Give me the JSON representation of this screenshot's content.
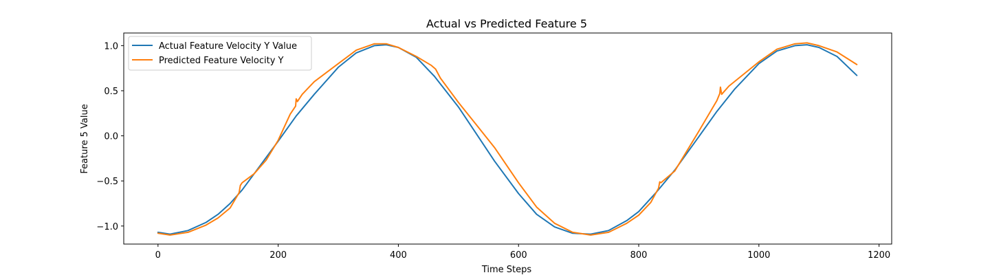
{
  "chart_data": {
    "type": "line",
    "title": "Actual vs Predicted Feature 5",
    "xlabel": "Time Steps",
    "ylabel": "Feature 5 Value",
    "xlim": [
      -57,
      1221
    ],
    "ylim": [
      -1.2,
      1.14
    ],
    "xticks": [
      0,
      200,
      400,
      600,
      800,
      1000,
      1200
    ],
    "yticks": [
      -1.0,
      -0.5,
      0.0,
      0.5,
      1.0
    ],
    "xtick_labels": [
      "0",
      "200",
      "400",
      "600",
      "800",
      "1000",
      "1200"
    ],
    "ytick_labels": [
      "−1.0",
      "−0.5",
      "0.0",
      "0.5",
      "1.0"
    ],
    "grid": false,
    "legend_position": "upper-left",
    "series": [
      {
        "name": "Actual Feature Velocity Y Value",
        "color": "#1f77b4",
        "x": [
          0,
          20,
          50,
          80,
          100,
          120,
          140,
          160,
          180,
          200,
          230,
          260,
          300,
          330,
          360,
          380,
          400,
          430,
          460,
          500,
          530,
          560,
          600,
          630,
          660,
          690,
          720,
          750,
          780,
          800,
          830,
          860,
          900,
          930,
          960,
          1000,
          1030,
          1060,
          1080,
          1100,
          1130,
          1163
        ],
        "y": [
          -1.07,
          -1.09,
          -1.05,
          -0.96,
          -0.87,
          -0.75,
          -0.6,
          -0.42,
          -0.24,
          -0.06,
          0.22,
          0.46,
          0.76,
          0.92,
          1.0,
          1.01,
          0.98,
          0.87,
          0.66,
          0.32,
          0.02,
          -0.28,
          -0.64,
          -0.87,
          -1.01,
          -1.08,
          -1.09,
          -1.05,
          -0.94,
          -0.84,
          -0.62,
          -0.38,
          -0.01,
          0.27,
          0.52,
          0.8,
          0.94,
          1.0,
          1.01,
          0.98,
          0.88,
          0.67
        ]
      },
      {
        "name": "Predicted Feature Velocity Y",
        "color": "#ff7f0e",
        "x": [
          0,
          20,
          50,
          80,
          100,
          120,
          135,
          137,
          140,
          160,
          180,
          200,
          220,
          229,
          230,
          232,
          240,
          260,
          300,
          330,
          360,
          380,
          400,
          430,
          455,
          462,
          470,
          500,
          530,
          560,
          600,
          630,
          660,
          690,
          720,
          750,
          780,
          800,
          820,
          833,
          835,
          837,
          860,
          900,
          930,
          935,
          936,
          938,
          950,
          1000,
          1030,
          1060,
          1080,
          1100,
          1130,
          1163
        ],
        "y": [
          -1.08,
          -1.1,
          -1.07,
          -0.99,
          -0.91,
          -0.8,
          -0.63,
          -0.55,
          -0.52,
          -0.42,
          -0.27,
          -0.05,
          0.24,
          0.33,
          0.41,
          0.38,
          0.46,
          0.6,
          0.8,
          0.95,
          1.02,
          1.02,
          0.98,
          0.88,
          0.78,
          0.74,
          0.64,
          0.37,
          0.12,
          -0.13,
          -0.52,
          -0.79,
          -0.97,
          -1.07,
          -1.1,
          -1.07,
          -0.97,
          -0.88,
          -0.74,
          -0.58,
          -0.51,
          -0.52,
          -0.39,
          0.05,
          0.39,
          0.47,
          0.54,
          0.46,
          0.55,
          0.82,
          0.96,
          1.02,
          1.03,
          1.0,
          0.93,
          0.79
        ]
      }
    ]
  }
}
